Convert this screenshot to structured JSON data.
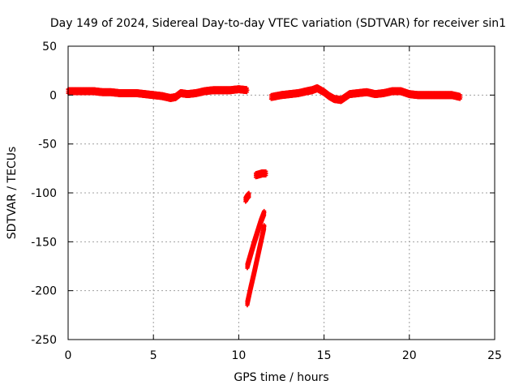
{
  "chart_data": {
    "type": "scatter",
    "title": "Day 149 of 2024, Sidereal Day-to-day VTEC variation (SDTVAR) for receiver sin1",
    "xlabel": "GPS time / hours",
    "ylabel": "SDTVAR / TECUs",
    "xlim": [
      0,
      25
    ],
    "ylim": [
      -250,
      50
    ],
    "xticks": [
      0,
      5,
      10,
      15,
      20,
      25
    ],
    "yticks": [
      50,
      0,
      -50,
      -100,
      -150,
      -200,
      -250
    ],
    "xtick_labels": [
      "0",
      "5",
      "10",
      "15",
      "20",
      "25"
    ],
    "ytick_labels": [
      "50",
      "0",
      "-50",
      "-100",
      "-150",
      "-200",
      "-250"
    ],
    "grid": true,
    "legend": "none",
    "marker_color": "#ff0000",
    "series": [
      {
        "name": "segment-1",
        "x": [
          0.0,
          0.5,
          1.0,
          1.5,
          2.0,
          2.5,
          3.0,
          3.5,
          4.0,
          4.5,
          5.0,
          5.5,
          6.0,
          6.3,
          6.6,
          7.0,
          7.5,
          8.0,
          8.5,
          9.0,
          9.5,
          10.0,
          10.5
        ],
        "y": [
          4,
          4,
          4,
          4,
          3,
          3,
          2,
          2,
          2,
          1,
          0,
          -1,
          -3,
          -2,
          2,
          1,
          2,
          4,
          5,
          5,
          5,
          6,
          5
        ]
      },
      {
        "name": "segment-2",
        "x": [
          11.9,
          12.5,
          13.0,
          13.5,
          14.0,
          14.3,
          14.6,
          15.0,
          15.3,
          15.6,
          16.0,
          16.5,
          17.0,
          17.5,
          18.0,
          18.5,
          19.0,
          19.5,
          20.0,
          20.5,
          21.0,
          21.5,
          22.0,
          22.5,
          23.0
        ],
        "y": [
          -2,
          0,
          1,
          2,
          4,
          5,
          7,
          3,
          -1,
          -4,
          -5,
          1,
          2,
          3,
          1,
          2,
          4,
          4,
          1,
          0,
          0,
          0,
          0,
          0,
          -2
        ]
      },
      {
        "name": "dropout-upper",
        "x": [
          10.4,
          10.5,
          10.6
        ],
        "y": [
          -107,
          -104,
          -102
        ]
      },
      {
        "name": "dropout-plateau",
        "x": [
          11.0,
          11.2,
          11.4,
          11.6
        ],
        "y": [
          -82,
          -81,
          -80,
          -80
        ]
      },
      {
        "name": "dropout-ramp-1",
        "x": [
          10.5,
          10.7,
          10.9,
          11.1,
          11.3,
          11.5
        ],
        "y": [
          -175,
          -163,
          -151,
          -140,
          -129,
          -120
        ]
      },
      {
        "name": "dropout-ramp-2",
        "x": [
          10.5,
          10.7,
          10.9,
          11.1,
          11.3,
          11.5
        ],
        "y": [
          -213,
          -197,
          -182,
          -166,
          -150,
          -134
        ]
      }
    ]
  }
}
